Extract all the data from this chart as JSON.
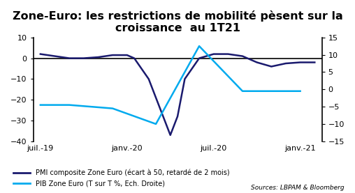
{
  "title": "Zone-Euro: les restrictions de mobilité pèsent sur la\ncroissance  au 1T21",
  "title_fontsize": 11.5,
  "background_color": "#ffffff",
  "pmi_label": "PMI composite Zone Euro (écart à 50, retardé de 2 mois)",
  "pib_label": "PIB Zone Euro (T sur T %, Ech. Droite)",
  "sources_text": "Sources: LBPAM & Bloomberg",
  "pmi_color": "#1a1a6e",
  "pib_color": "#00aaee",
  "xtick_labels": [
    "juil.-19",
    "janv.-20",
    "juil.-20",
    "janv.-21"
  ],
  "xtick_positions": [
    0,
    6,
    12,
    18
  ],
  "yleft_min": -40,
  "yleft_max": 10,
  "yleft_ticks": [
    -40,
    -30,
    -20,
    -10,
    0,
    10
  ],
  "yright_min": -15,
  "yright_max": 15,
  "yright_ticks": [
    -15,
    -10,
    -5,
    0,
    5,
    10,
    15
  ],
  "pmi_x": [
    0,
    1,
    2,
    3,
    4,
    5,
    6,
    6.5,
    7.5,
    8.5,
    9,
    9.5,
    10,
    11,
    12,
    13,
    14,
    15,
    16,
    17,
    18,
    19
  ],
  "pmi_y": [
    2,
    1,
    0,
    0,
    0.5,
    1.5,
    1.5,
    0,
    -10,
    -28,
    -37,
    -28,
    -10,
    0,
    2,
    2,
    1,
    -2,
    -4,
    -2.5,
    -2,
    -2
  ],
  "pib_x": [
    0,
    2,
    5,
    8,
    11,
    14,
    18
  ],
  "pib_y": [
    -4.5,
    -4.5,
    -5.5,
    -10,
    12.5,
    -0.5,
    -0.5
  ]
}
